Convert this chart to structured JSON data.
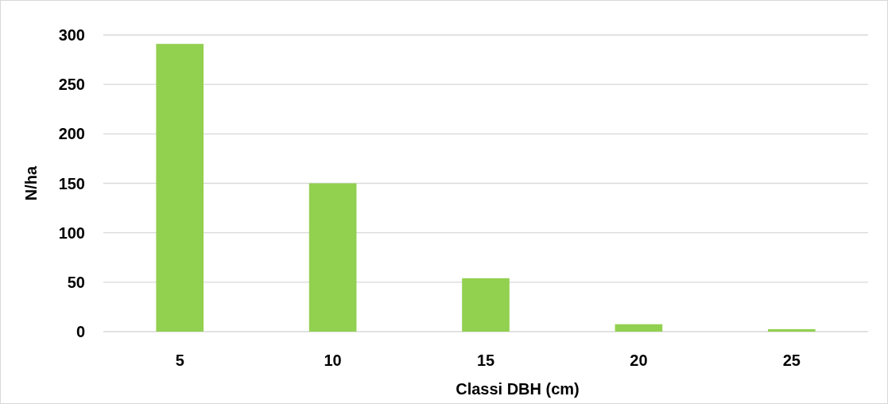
{
  "chart_data": {
    "type": "bar",
    "xlabel": "Classi DBH (cm)",
    "ylabel": "N/ha",
    "categories": [
      "5",
      "10",
      "15",
      "20",
      "25"
    ],
    "values": [
      291,
      150,
      54,
      7.5,
      2.5
    ],
    "color": "#92d050",
    "ylim": [
      0,
      300
    ],
    "yticks": [
      0,
      50,
      100,
      150,
      200,
      250,
      300
    ],
    "grid": "y"
  }
}
